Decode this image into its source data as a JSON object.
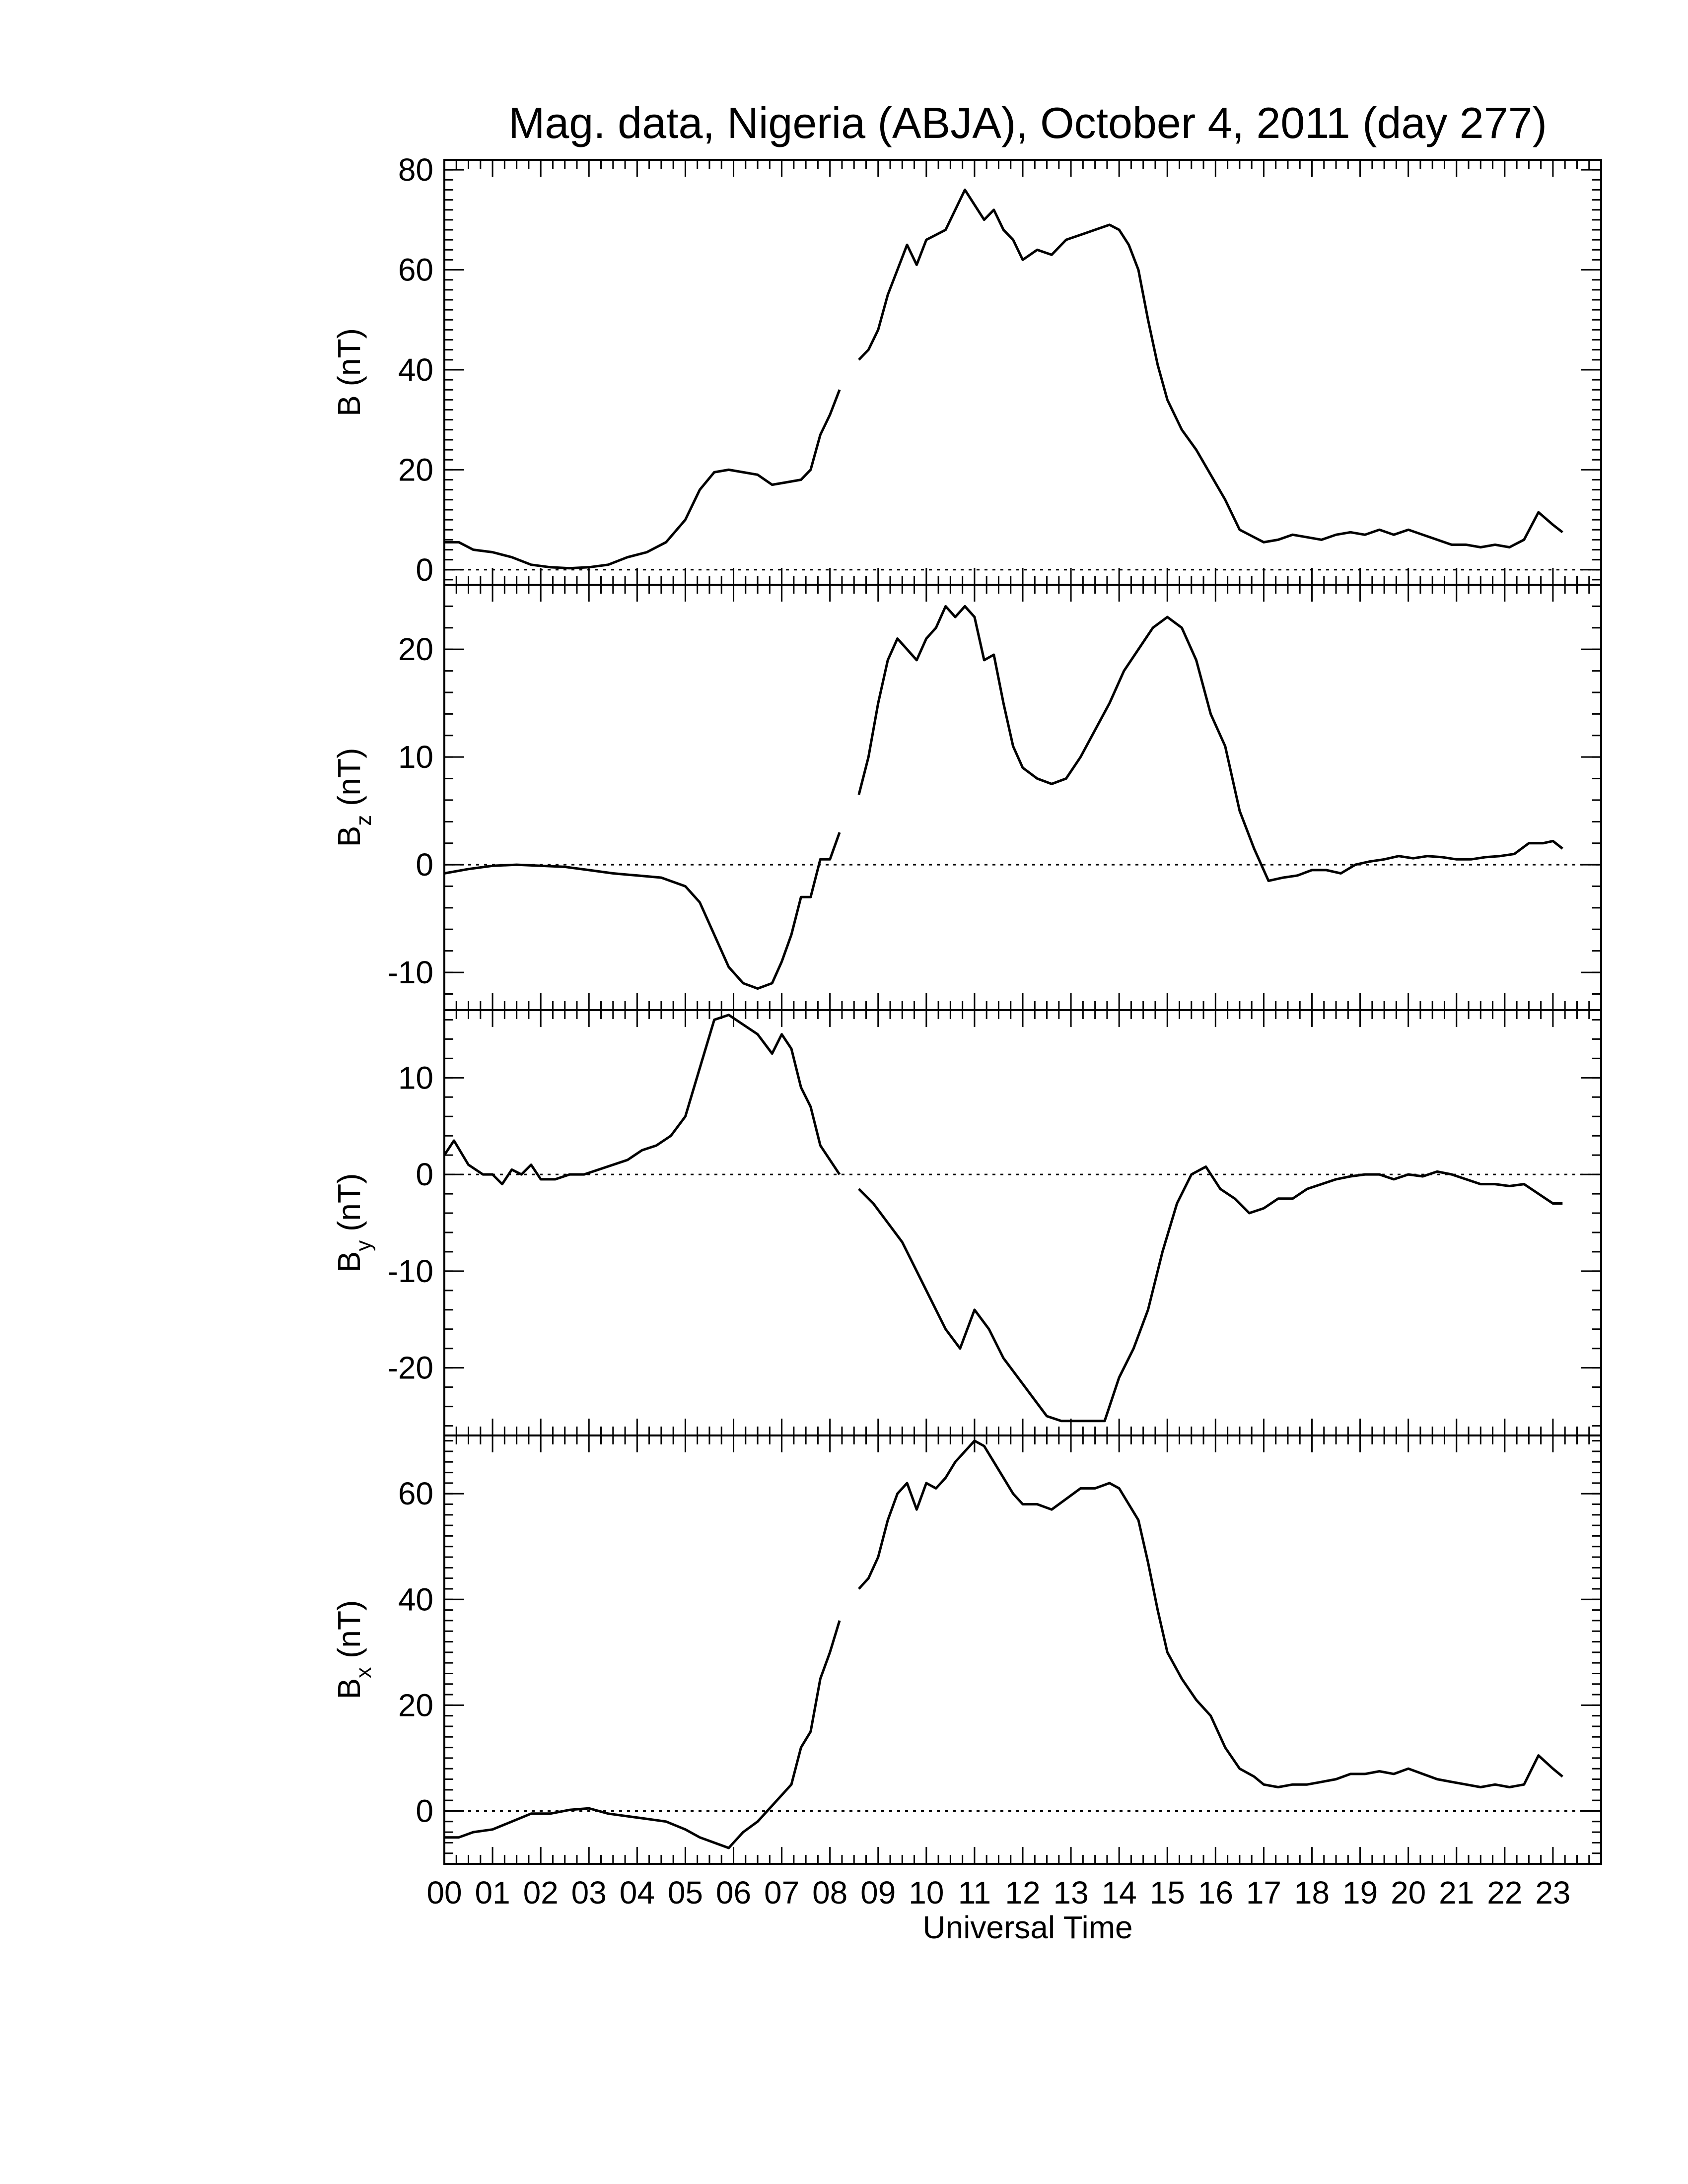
{
  "chart_data": {
    "type": "line",
    "title": "Mag. data, Nigeria (ABJA), October 4, 2011 (day 277)",
    "xlabel": "Universal Time",
    "xlim": [
      0,
      24
    ],
    "x_tick_labels": [
      "00",
      "01",
      "02",
      "03",
      "04",
      "05",
      "06",
      "07",
      "08",
      "09",
      "10",
      "11",
      "12",
      "13",
      "14",
      "15",
      "16",
      "17",
      "18",
      "19",
      "20",
      "21",
      "22",
      "23"
    ],
    "zero_line": "dotted",
    "panels": [
      {
        "id": "B",
        "ylabel_main": "B",
        "ylabel_sub": "",
        "ylabel_unit": "(nT)",
        "ylim": [
          -3,
          82
        ],
        "yticks": [
          0,
          20,
          40,
          60,
          80
        ],
        "ytick_labels": [
          "0",
          "20",
          "40",
          "60",
          "80"
        ],
        "segments": [
          {
            "x": [
              0,
              0.3,
              0.6,
              1.0,
              1.4,
              1.8,
              2.2,
              2.6,
              3.0,
              3.4,
              3.8,
              4.2,
              4.6,
              5.0,
              5.3,
              5.6,
              5.9,
              6.2,
              6.5,
              6.8,
              7.1,
              7.4,
              7.6,
              7.8,
              8.0,
              8.2
            ],
            "y": [
              5.5,
              5.5,
              4,
              3.5,
              2.5,
              1.0,
              0.5,
              0.3,
              0.5,
              1.0,
              2.5,
              3.5,
              5.5,
              10,
              16,
              19.5,
              20,
              19.5,
              19,
              17,
              17.5,
              18,
              20,
              27,
              31,
              36
            ]
          },
          {
            "x": [
              8.6,
              8.8,
              9.0,
              9.2,
              9.4,
              9.6,
              9.8,
              10.0,
              10.2,
              10.4,
              10.6,
              10.8,
              11.0,
              11.2,
              11.4,
              11.6,
              11.8,
              12.0,
              12.3,
              12.6,
              12.9,
              13.2,
              13.5,
              13.8,
              14.0,
              14.2,
              14.4,
              14.6,
              14.8,
              15.0,
              15.3,
              15.6,
              15.9,
              16.2,
              16.5,
              16.8,
              17.0,
              17.3,
              17.6,
              17.9,
              18.2,
              18.5,
              18.8,
              19.1,
              19.4,
              19.7,
              20.0,
              20.3,
              20.6,
              20.9,
              21.2,
              21.5,
              21.8,
              22.1,
              22.4,
              22.7,
              23.0,
              23.2
            ],
            "y": [
              42,
              44,
              48,
              55,
              60,
              65,
              61,
              66,
              67,
              68,
              72,
              76,
              73,
              70,
              72,
              68,
              66,
              62,
              64,
              63,
              66,
              67,
              68,
              69,
              68,
              65,
              60,
              50,
              41,
              34,
              28,
              24,
              19,
              14,
              8,
              6.5,
              5.5,
              6,
              7,
              6.5,
              6,
              7,
              7.5,
              7,
              8,
              7,
              8,
              7,
              6,
              5,
              5,
              4.5,
              5,
              4.5,
              6,
              11.5,
              9,
              7.5
            ]
          }
        ]
      },
      {
        "id": "Bz",
        "ylabel_main": "B",
        "ylabel_sub": "z",
        "ylabel_unit": "(nT)",
        "ylim": [
          -13.5,
          26
        ],
        "yticks": [
          -10,
          0,
          10,
          20
        ],
        "ytick_labels": [
          "-10",
          "0",
          "10",
          "20"
        ],
        "segments": [
          {
            "x": [
              0,
              0.5,
              1.0,
              1.5,
              2.0,
              2.5,
              3.0,
              3.5,
              4.0,
              4.5,
              5.0,
              5.3,
              5.6,
              5.9,
              6.2,
              6.5,
              6.8,
              7.0,
              7.2,
              7.4,
              7.6,
              7.8,
              8.0,
              8.2
            ],
            "y": [
              -0.8,
              -0.4,
              -0.1,
              0,
              -0.1,
              -0.2,
              -0.5,
              -0.8,
              -1.0,
              -1.2,
              -2.0,
              -3.5,
              -6.5,
              -9.5,
              -11,
              -11.5,
              -11,
              -9,
              -6.5,
              -3,
              -3,
              0.5,
              0.5,
              3
            ]
          },
          {
            "x": [
              8.6,
              8.8,
              9.0,
              9.2,
              9.4,
              9.6,
              9.8,
              10.0,
              10.2,
              10.4,
              10.6,
              10.8,
              11.0,
              11.2,
              11.4,
              11.6,
              11.8,
              12.0,
              12.3,
              12.6,
              12.9,
              13.2,
              13.5,
              13.8,
              14.1,
              14.4,
              14.7,
              15.0,
              15.3,
              15.6,
              15.9,
              16.2,
              16.5,
              16.8,
              17.1,
              17.4,
              17.7,
              18.0,
              18.3,
              18.6,
              18.9,
              19.2,
              19.5,
              19.8,
              20.1,
              20.4,
              20.7,
              21.0,
              21.3,
              21.6,
              21.9,
              22.2,
              22.5,
              22.8,
              23.0,
              23.2
            ],
            "y": [
              6.5,
              10,
              15,
              19,
              21,
              20,
              19,
              21,
              22,
              24,
              23,
              24,
              23,
              19,
              19.5,
              15,
              11,
              9,
              8,
              7.5,
              8,
              10,
              12.5,
              15,
              18,
              20,
              22,
              23,
              22,
              19,
              14,
              11,
              5,
              1.5,
              -1.5,
              -1.2,
              -1,
              -0.5,
              -0.5,
              -0.8,
              0,
              0.3,
              0.5,
              0.8,
              0.6,
              0.8,
              0.7,
              0.5,
              0.5,
              0.7,
              0.8,
              1.0,
              2.0,
              2.0,
              2.2,
              1.5
            ]
          }
        ]
      },
      {
        "id": "By",
        "ylabel_main": "B",
        "ylabel_sub": "y",
        "ylabel_unit": "(nT)",
        "ylim": [
          -27,
          17
        ],
        "yticks": [
          -20,
          -10,
          0,
          10
        ],
        "ytick_labels": [
          "-20",
          "-10",
          "0",
          "10"
        ],
        "segments": [
          {
            "x": [
              0,
              0.2,
              0.5,
              0.8,
              1.0,
              1.2,
              1.4,
              1.6,
              1.8,
              2.0,
              2.3,
              2.6,
              2.9,
              3.2,
              3.5,
              3.8,
              4.1,
              4.4,
              4.7,
              5.0,
              5.3,
              5.6,
              5.9,
              6.2,
              6.5,
              6.8,
              7.0,
              7.2,
              7.4,
              7.6,
              7.8,
              8.0,
              8.2
            ],
            "y": [
              2,
              3.5,
              1,
              0,
              0,
              -1,
              0.5,
              0,
              1,
              -0.5,
              -0.5,
              0,
              0,
              0.5,
              1,
              1.5,
              2.5,
              3,
              4,
              6,
              11,
              16,
              16.5,
              15.5,
              14.5,
              12.5,
              14.5,
              13,
              9,
              7,
              3,
              1.5,
              0
            ]
          },
          {
            "x": [
              8.6,
              8.9,
              9.2,
              9.5,
              9.8,
              10.1,
              10.4,
              10.7,
              11.0,
              11.3,
              11.6,
              11.9,
              12.2,
              12.5,
              12.8,
              13.1,
              13.4,
              13.7,
              14.0,
              14.3,
              14.6,
              14.9,
              15.2,
              15.5,
              15.8,
              16.1,
              16.4,
              16.7,
              17.0,
              17.3,
              17.6,
              17.9,
              18.2,
              18.5,
              18.8,
              19.1,
              19.4,
              19.7,
              20.0,
              20.3,
              20.6,
              20.9,
              21.2,
              21.5,
              21.8,
              22.1,
              22.4,
              22.7,
              23.0,
              23.2
            ],
            "y": [
              -1.5,
              -3,
              -5,
              -7,
              -10,
              -13,
              -16,
              -18,
              -14,
              -16,
              -19,
              -21,
              -23,
              -25,
              -25.5,
              -25.5,
              -25.5,
              -25.5,
              -21,
              -18,
              -14,
              -8,
              -3,
              0,
              0.8,
              -1.5,
              -2.5,
              -4,
              -3.5,
              -2.5,
              -2.5,
              -1.5,
              -1.0,
              -0.5,
              -0.2,
              0,
              0,
              -0.5,
              0,
              -0.2,
              0.3,
              0,
              -0.5,
              -1.0,
              -1.0,
              -1.2,
              -1.0,
              -2.0,
              -3.0,
              -3.0
            ]
          }
        ]
      },
      {
        "id": "Bx",
        "ylabel_main": "B",
        "ylabel_sub": "x",
        "ylabel_unit": "(nT)",
        "ylim": [
          -10,
          71
        ],
        "yticks": [
          0,
          20,
          40,
          60
        ],
        "ytick_labels": [
          "0",
          "20",
          "40",
          "60"
        ],
        "segments": [
          {
            "x": [
              0,
              0.3,
              0.6,
              1.0,
              1.4,
              1.8,
              2.2,
              2.6,
              3.0,
              3.4,
              3.8,
              4.2,
              4.6,
              5.0,
              5.3,
              5.6,
              5.9,
              6.2,
              6.5,
              6.8,
              7.0,
              7.2,
              7.4,
              7.6,
              7.8,
              8.0,
              8.2
            ],
            "y": [
              -5,
              -5,
              -4,
              -3.5,
              -2,
              -0.5,
              -0.5,
              0.2,
              0.5,
              -0.5,
              -1.0,
              -1.5,
              -2.0,
              -3.5,
              -5,
              -6,
              -7,
              -4,
              -2,
              1,
              3,
              5,
              12,
              15,
              25,
              30,
              36
            ]
          },
          {
            "x": [
              8.6,
              8.8,
              9.0,
              9.2,
              9.4,
              9.6,
              9.8,
              10.0,
              10.2,
              10.4,
              10.6,
              10.8,
              11.0,
              11.2,
              11.4,
              11.6,
              11.8,
              12.0,
              12.3,
              12.6,
              12.9,
              13.2,
              13.5,
              13.8,
              14.0,
              14.2,
              14.4,
              14.6,
              14.8,
              15.0,
              15.3,
              15.6,
              15.9,
              16.2,
              16.5,
              16.8,
              17.0,
              17.3,
              17.6,
              17.9,
              18.2,
              18.5,
              18.8,
              19.1,
              19.4,
              19.7,
              20.0,
              20.3,
              20.6,
              20.9,
              21.2,
              21.5,
              21.8,
              22.1,
              22.4,
              22.7,
              23.0,
              23.2
            ],
            "y": [
              42,
              44,
              48,
              55,
              60,
              62,
              57,
              62,
              61,
              63,
              66,
              68,
              70,
              69,
              66,
              63,
              60,
              58,
              58,
              57,
              59,
              61,
              61,
              62,
              61,
              58,
              55,
              47,
              38,
              30,
              25,
              21,
              18,
              12,
              8,
              6.5,
              5,
              4.5,
              5,
              5,
              5.5,
              6,
              7,
              7,
              7.5,
              7,
              8,
              7,
              6,
              5.5,
              5,
              4.5,
              5,
              4.5,
              5,
              10.5,
              8,
              6.5
            ]
          }
        ]
      }
    ]
  }
}
